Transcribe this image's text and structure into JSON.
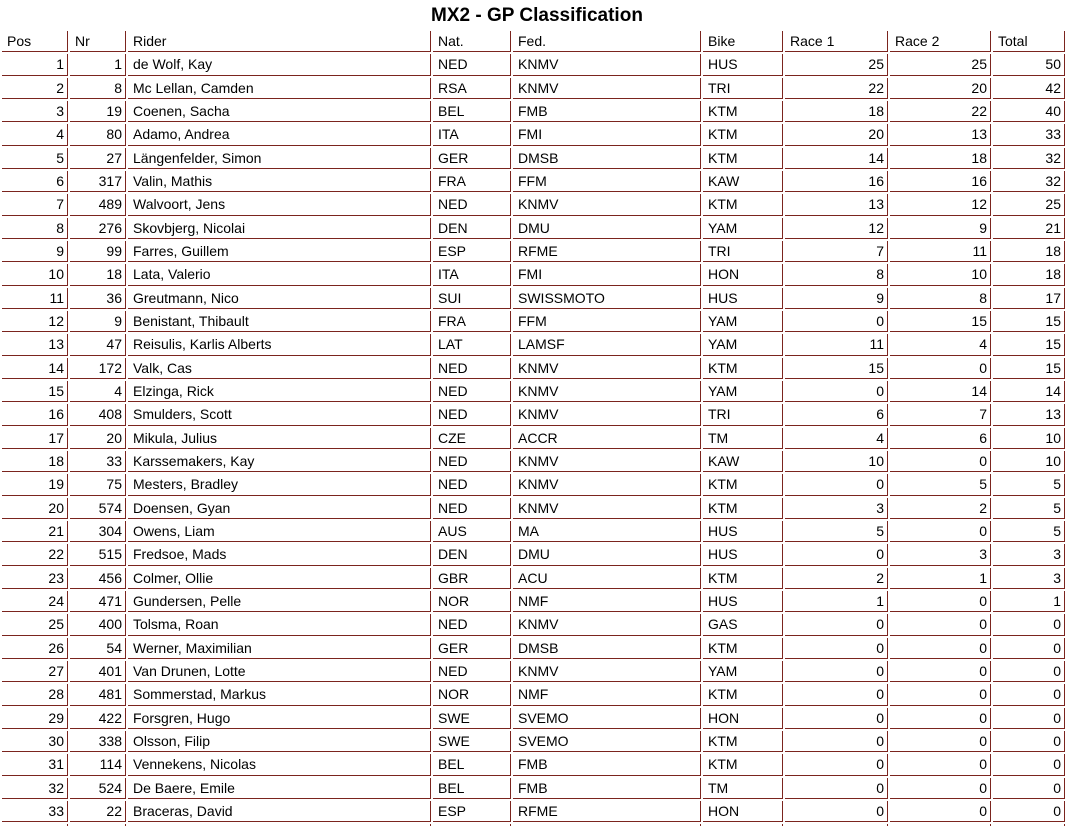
{
  "title": "MX2 - GP Classification",
  "colors": {
    "border": "#7b241e",
    "text": "#000000",
    "background": "#ffffff"
  },
  "table": {
    "columns": [
      {
        "key": "pos",
        "label": "Pos"
      },
      {
        "key": "nr",
        "label": "Nr"
      },
      {
        "key": "rider",
        "label": "Rider"
      },
      {
        "key": "nat",
        "label": "Nat."
      },
      {
        "key": "fed",
        "label": "Fed."
      },
      {
        "key": "bike",
        "label": "Bike"
      },
      {
        "key": "race1",
        "label": "Race 1"
      },
      {
        "key": "race2",
        "label": "Race 2"
      },
      {
        "key": "total",
        "label": "Total"
      }
    ],
    "rows": [
      {
        "pos": 1,
        "nr": 1,
        "rider": "de Wolf, Kay",
        "nat": "NED",
        "fed": "KNMV",
        "bike": "HUS",
        "race1": 25,
        "race2": 25,
        "total": 50
      },
      {
        "pos": 2,
        "nr": 8,
        "rider": "Mc Lellan, Camden",
        "nat": "RSA",
        "fed": "KNMV",
        "bike": "TRI",
        "race1": 22,
        "race2": 20,
        "total": 42
      },
      {
        "pos": 3,
        "nr": 19,
        "rider": "Coenen, Sacha",
        "nat": "BEL",
        "fed": "FMB",
        "bike": "KTM",
        "race1": 18,
        "race2": 22,
        "total": 40
      },
      {
        "pos": 4,
        "nr": 80,
        "rider": "Adamo, Andrea",
        "nat": "ITA",
        "fed": "FMI",
        "bike": "KTM",
        "race1": 20,
        "race2": 13,
        "total": 33
      },
      {
        "pos": 5,
        "nr": 27,
        "rider": "Längenfelder, Simon",
        "nat": "GER",
        "fed": "DMSB",
        "bike": "KTM",
        "race1": 14,
        "race2": 18,
        "total": 32
      },
      {
        "pos": 6,
        "nr": 317,
        "rider": "Valin, Mathis",
        "nat": "FRA",
        "fed": "FFM",
        "bike": "KAW",
        "race1": 16,
        "race2": 16,
        "total": 32
      },
      {
        "pos": 7,
        "nr": 489,
        "rider": "Walvoort, Jens",
        "nat": "NED",
        "fed": "KNMV",
        "bike": "KTM",
        "race1": 13,
        "race2": 12,
        "total": 25
      },
      {
        "pos": 8,
        "nr": 276,
        "rider": "Skovbjerg, Nicolai",
        "nat": "DEN",
        "fed": "DMU",
        "bike": "YAM",
        "race1": 12,
        "race2": 9,
        "total": 21
      },
      {
        "pos": 9,
        "nr": 99,
        "rider": "Farres, Guillem",
        "nat": "ESP",
        "fed": "RFME",
        "bike": "TRI",
        "race1": 7,
        "race2": 11,
        "total": 18
      },
      {
        "pos": 10,
        "nr": 18,
        "rider": "Lata, Valerio",
        "nat": "ITA",
        "fed": "FMI",
        "bike": "HON",
        "race1": 8,
        "race2": 10,
        "total": 18
      },
      {
        "pos": 11,
        "nr": 36,
        "rider": "Greutmann, Nico",
        "nat": "SUI",
        "fed": "SWISSMOTO",
        "bike": "HUS",
        "race1": 9,
        "race2": 8,
        "total": 17
      },
      {
        "pos": 12,
        "nr": 9,
        "rider": "Benistant, Thibault",
        "nat": "FRA",
        "fed": "FFM",
        "bike": "YAM",
        "race1": 0,
        "race2": 15,
        "total": 15
      },
      {
        "pos": 13,
        "nr": 47,
        "rider": "Reisulis, Karlis Alberts",
        "nat": "LAT",
        "fed": "LAMSF",
        "bike": "YAM",
        "race1": 11,
        "race2": 4,
        "total": 15
      },
      {
        "pos": 14,
        "nr": 172,
        "rider": "Valk, Cas",
        "nat": "NED",
        "fed": "KNMV",
        "bike": "KTM",
        "race1": 15,
        "race2": 0,
        "total": 15
      },
      {
        "pos": 15,
        "nr": 4,
        "rider": "Elzinga, Rick",
        "nat": "NED",
        "fed": "KNMV",
        "bike": "YAM",
        "race1": 0,
        "race2": 14,
        "total": 14
      },
      {
        "pos": 16,
        "nr": 408,
        "rider": "Smulders, Scott",
        "nat": "NED",
        "fed": "KNMV",
        "bike": "TRI",
        "race1": 6,
        "race2": 7,
        "total": 13
      },
      {
        "pos": 17,
        "nr": 20,
        "rider": "Mikula, Julius",
        "nat": "CZE",
        "fed": "ACCR",
        "bike": "TM",
        "race1": 4,
        "race2": 6,
        "total": 10
      },
      {
        "pos": 18,
        "nr": 33,
        "rider": "Karssemakers, Kay",
        "nat": "NED",
        "fed": "KNMV",
        "bike": "KAW",
        "race1": 10,
        "race2": 0,
        "total": 10
      },
      {
        "pos": 19,
        "nr": 75,
        "rider": "Mesters, Bradley",
        "nat": "NED",
        "fed": "KNMV",
        "bike": "KTM",
        "race1": 0,
        "race2": 5,
        "total": 5
      },
      {
        "pos": 20,
        "nr": 574,
        "rider": "Doensen, Gyan",
        "nat": "NED",
        "fed": "KNMV",
        "bike": "KTM",
        "race1": 3,
        "race2": 2,
        "total": 5
      },
      {
        "pos": 21,
        "nr": 304,
        "rider": "Owens, Liam",
        "nat": "AUS",
        "fed": "MA",
        "bike": "HUS",
        "race1": 5,
        "race2": 0,
        "total": 5
      },
      {
        "pos": 22,
        "nr": 515,
        "rider": "Fredsoe, Mads",
        "nat": "DEN",
        "fed": "DMU",
        "bike": "HUS",
        "race1": 0,
        "race2": 3,
        "total": 3
      },
      {
        "pos": 23,
        "nr": 456,
        "rider": "Colmer, Ollie",
        "nat": "GBR",
        "fed": "ACU",
        "bike": "KTM",
        "race1": 2,
        "race2": 1,
        "total": 3
      },
      {
        "pos": 24,
        "nr": 471,
        "rider": "Gundersen, Pelle",
        "nat": "NOR",
        "fed": "NMF",
        "bike": "HUS",
        "race1": 1,
        "race2": 0,
        "total": 1
      },
      {
        "pos": 25,
        "nr": 400,
        "rider": "Tolsma, Roan",
        "nat": "NED",
        "fed": "KNMV",
        "bike": "GAS",
        "race1": 0,
        "race2": 0,
        "total": 0
      },
      {
        "pos": 26,
        "nr": 54,
        "rider": "Werner, Maximilian",
        "nat": "GER",
        "fed": "DMSB",
        "bike": "KTM",
        "race1": 0,
        "race2": 0,
        "total": 0
      },
      {
        "pos": 27,
        "nr": 401,
        "rider": "Van Drunen, Lotte",
        "nat": "NED",
        "fed": "KNMV",
        "bike": "YAM",
        "race1": 0,
        "race2": 0,
        "total": 0
      },
      {
        "pos": 28,
        "nr": 481,
        "rider": "Sommerstad, Markus",
        "nat": "NOR",
        "fed": "NMF",
        "bike": "KTM",
        "race1": 0,
        "race2": 0,
        "total": 0
      },
      {
        "pos": 29,
        "nr": 422,
        "rider": "Forsgren, Hugo",
        "nat": "SWE",
        "fed": "SVEMO",
        "bike": "HON",
        "race1": 0,
        "race2": 0,
        "total": 0
      },
      {
        "pos": 30,
        "nr": 338,
        "rider": "Olsson, Filip",
        "nat": "SWE",
        "fed": "SVEMO",
        "bike": "KTM",
        "race1": 0,
        "race2": 0,
        "total": 0
      },
      {
        "pos": 31,
        "nr": 114,
        "rider": "Vennekens, Nicolas",
        "nat": "BEL",
        "fed": "FMB",
        "bike": "KTM",
        "race1": 0,
        "race2": 0,
        "total": 0
      },
      {
        "pos": 32,
        "nr": 524,
        "rider": "De Baere, Emile",
        "nat": "BEL",
        "fed": "FMB",
        "bike": "TM",
        "race1": 0,
        "race2": 0,
        "total": 0
      },
      {
        "pos": 33,
        "nr": 22,
        "rider": "Braceras, David",
        "nat": "ESP",
        "fed": "RFME",
        "bike": "HON",
        "race1": 0,
        "race2": 0,
        "total": 0
      }
    ]
  }
}
